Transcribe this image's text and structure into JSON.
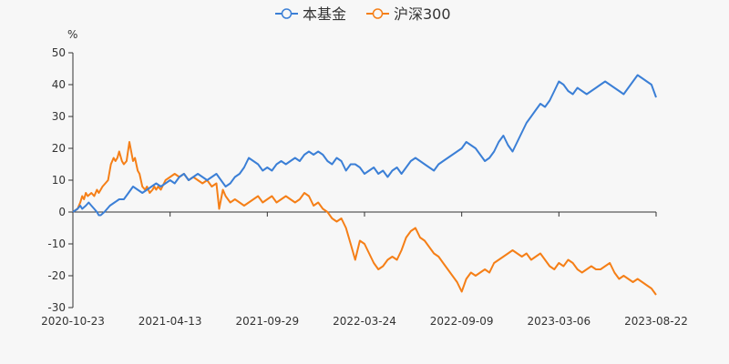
{
  "chart_data": {
    "type": "line",
    "y_unit": "%",
    "ylim": [
      -30,
      50
    ],
    "yticks": [
      50,
      40,
      30,
      20,
      10,
      0,
      -10,
      -20,
      -30
    ],
    "x_tick_labels": [
      "2020-10-23",
      "2021-04-13",
      "2021-09-29",
      "2022-03-24",
      "2022-09-09",
      "2023-03-06",
      "2023-08-22"
    ],
    "legend_position": "top-center",
    "series": [
      {
        "name": "本基金",
        "color": "#3b7fd6",
        "points": [
          [
            0,
            0
          ],
          [
            0.05,
            1
          ],
          [
            0.08,
            2
          ],
          [
            0.1,
            1
          ],
          [
            0.14,
            2
          ],
          [
            0.17,
            3
          ],
          [
            0.2,
            2
          ],
          [
            0.23,
            1
          ],
          [
            0.26,
            0
          ],
          [
            0.28,
            -1
          ],
          [
            0.3,
            -1
          ],
          [
            0.34,
            0
          ],
          [
            0.37,
            1
          ],
          [
            0.4,
            2
          ],
          [
            0.45,
            3
          ],
          [
            0.5,
            4
          ],
          [
            0.55,
            4
          ],
          [
            0.6,
            6
          ],
          [
            0.65,
            8
          ],
          [
            0.7,
            7
          ],
          [
            0.75,
            6
          ],
          [
            0.8,
            7
          ],
          [
            0.85,
            8
          ],
          [
            0.9,
            9
          ],
          [
            0.95,
            8
          ],
          [
            1.0,
            9
          ],
          [
            1.05,
            10
          ],
          [
            1.1,
            9
          ],
          [
            1.15,
            11
          ],
          [
            1.2,
            12
          ],
          [
            1.25,
            10
          ],
          [
            1.3,
            11
          ],
          [
            1.35,
            12
          ],
          [
            1.4,
            11
          ],
          [
            1.45,
            10
          ],
          [
            1.5,
            11
          ],
          [
            1.55,
            12
          ],
          [
            1.6,
            10
          ],
          [
            1.65,
            8
          ],
          [
            1.7,
            9
          ],
          [
            1.75,
            11
          ],
          [
            1.8,
            12
          ],
          [
            1.85,
            14
          ],
          [
            1.9,
            17
          ],
          [
            1.95,
            16
          ],
          [
            2.0,
            15
          ],
          [
            2.05,
            13
          ],
          [
            2.1,
            14
          ],
          [
            2.15,
            13
          ],
          [
            2.2,
            15
          ],
          [
            2.25,
            16
          ],
          [
            2.3,
            15
          ],
          [
            2.35,
            16
          ],
          [
            2.4,
            17
          ],
          [
            2.45,
            16
          ],
          [
            2.5,
            18
          ],
          [
            2.55,
            19
          ],
          [
            2.6,
            18
          ],
          [
            2.65,
            19
          ],
          [
            2.7,
            18
          ],
          [
            2.75,
            16
          ],
          [
            2.8,
            15
          ],
          [
            2.85,
            17
          ],
          [
            2.9,
            16
          ],
          [
            2.95,
            13
          ],
          [
            3.0,
            15
          ],
          [
            3.05,
            15
          ],
          [
            3.1,
            14
          ],
          [
            3.15,
            12
          ],
          [
            3.2,
            13
          ],
          [
            3.25,
            14
          ],
          [
            3.3,
            12
          ],
          [
            3.35,
            13
          ],
          [
            3.4,
            11
          ],
          [
            3.45,
            13
          ],
          [
            3.5,
            14
          ],
          [
            3.55,
            12
          ],
          [
            3.6,
            14
          ],
          [
            3.65,
            16
          ],
          [
            3.7,
            17
          ],
          [
            3.75,
            16
          ],
          [
            3.8,
            15
          ],
          [
            3.85,
            14
          ],
          [
            3.9,
            13
          ],
          [
            3.95,
            15
          ],
          [
            4.0,
            16
          ],
          [
            4.05,
            17
          ],
          [
            4.1,
            18
          ],
          [
            4.15,
            19
          ],
          [
            4.2,
            20
          ],
          [
            4.25,
            22
          ],
          [
            4.3,
            21
          ],
          [
            4.35,
            20
          ],
          [
            4.4,
            18
          ],
          [
            4.45,
            16
          ],
          [
            4.5,
            17
          ],
          [
            4.55,
            19
          ],
          [
            4.6,
            22
          ],
          [
            4.65,
            24
          ],
          [
            4.7,
            21
          ],
          [
            4.75,
            19
          ],
          [
            4.8,
            22
          ],
          [
            4.85,
            25
          ],
          [
            4.9,
            28
          ],
          [
            4.95,
            30
          ],
          [
            5.0,
            32
          ],
          [
            5.05,
            34
          ],
          [
            5.1,
            33
          ],
          [
            5.15,
            35
          ],
          [
            5.2,
            38
          ],
          [
            5.25,
            41
          ],
          [
            5.3,
            40
          ],
          [
            5.35,
            38
          ],
          [
            5.4,
            37
          ],
          [
            5.45,
            39
          ],
          [
            5.5,
            38
          ],
          [
            5.55,
            37
          ],
          [
            5.6,
            38
          ],
          [
            5.65,
            39
          ],
          [
            5.7,
            40
          ],
          [
            5.75,
            41
          ],
          [
            5.8,
            40
          ],
          [
            5.85,
            39
          ],
          [
            5.9,
            38
          ],
          [
            5.95,
            37
          ],
          [
            6.0,
            39
          ],
          [
            6.05,
            41
          ],
          [
            6.1,
            43
          ],
          [
            6.15,
            42
          ],
          [
            6.2,
            41
          ],
          [
            6.25,
            40
          ],
          [
            6.3,
            36
          ]
        ]
      },
      {
        "name": "沪深300",
        "color": "#f57f17",
        "points": [
          [
            0,
            0
          ],
          [
            0.05,
            1
          ],
          [
            0.08,
            3
          ],
          [
            0.1,
            5
          ],
          [
            0.12,
            4
          ],
          [
            0.14,
            6
          ],
          [
            0.16,
            5
          ],
          [
            0.2,
            6
          ],
          [
            0.23,
            5
          ],
          [
            0.26,
            7
          ],
          [
            0.28,
            6
          ],
          [
            0.3,
            7
          ],
          [
            0.32,
            8
          ],
          [
            0.35,
            9
          ],
          [
            0.38,
            10
          ],
          [
            0.41,
            15
          ],
          [
            0.44,
            17
          ],
          [
            0.46,
            16
          ],
          [
            0.48,
            17
          ],
          [
            0.5,
            19
          ],
          [
            0.53,
            16
          ],
          [
            0.55,
            15
          ],
          [
            0.58,
            16
          ],
          [
            0.61,
            22
          ],
          [
            0.63,
            19
          ],
          [
            0.65,
            16
          ],
          [
            0.67,
            17
          ],
          [
            0.7,
            13
          ],
          [
            0.72,
            12
          ],
          [
            0.75,
            8
          ],
          [
            0.78,
            7
          ],
          [
            0.8,
            8
          ],
          [
            0.83,
            6
          ],
          [
            0.86,
            7
          ],
          [
            0.88,
            8
          ],
          [
            0.9,
            7
          ],
          [
            0.92,
            8
          ],
          [
            0.95,
            7
          ],
          [
            1.0,
            10
          ],
          [
            1.05,
            11
          ],
          [
            1.1,
            12
          ],
          [
            1.15,
            11
          ],
          [
            1.2,
            12
          ],
          [
            1.25,
            10
          ],
          [
            1.3,
            11
          ],
          [
            1.35,
            10
          ],
          [
            1.4,
            9
          ],
          [
            1.45,
            10
          ],
          [
            1.5,
            8
          ],
          [
            1.55,
            9
          ],
          [
            1.58,
            1
          ],
          [
            1.62,
            7
          ],
          [
            1.65,
            5
          ],
          [
            1.7,
            3
          ],
          [
            1.75,
            4
          ],
          [
            1.8,
            3
          ],
          [
            1.85,
            2
          ],
          [
            1.9,
            3
          ],
          [
            1.95,
            4
          ],
          [
            2.0,
            5
          ],
          [
            2.05,
            3
          ],
          [
            2.1,
            4
          ],
          [
            2.15,
            5
          ],
          [
            2.2,
            3
          ],
          [
            2.25,
            4
          ],
          [
            2.3,
            5
          ],
          [
            2.35,
            4
          ],
          [
            2.4,
            3
          ],
          [
            2.45,
            4
          ],
          [
            2.5,
            6
          ],
          [
            2.55,
            5
          ],
          [
            2.6,
            2
          ],
          [
            2.65,
            3
          ],
          [
            2.7,
            1
          ],
          [
            2.75,
            0
          ],
          [
            2.8,
            -2
          ],
          [
            2.85,
            -3
          ],
          [
            2.9,
            -2
          ],
          [
            2.95,
            -5
          ],
          [
            3.0,
            -10
          ],
          [
            3.05,
            -15
          ],
          [
            3.1,
            -9
          ],
          [
            3.15,
            -10
          ],
          [
            3.2,
            -13
          ],
          [
            3.25,
            -16
          ],
          [
            3.3,
            -18
          ],
          [
            3.35,
            -17
          ],
          [
            3.4,
            -15
          ],
          [
            3.45,
            -14
          ],
          [
            3.5,
            -15
          ],
          [
            3.55,
            -12
          ],
          [
            3.6,
            -8
          ],
          [
            3.65,
            -6
          ],
          [
            3.7,
            -5
          ],
          [
            3.75,
            -8
          ],
          [
            3.8,
            -9
          ],
          [
            3.85,
            -11
          ],
          [
            3.9,
            -13
          ],
          [
            3.95,
            -14
          ],
          [
            4.0,
            -16
          ],
          [
            4.05,
            -18
          ],
          [
            4.1,
            -20
          ],
          [
            4.15,
            -22
          ],
          [
            4.2,
            -25
          ],
          [
            4.25,
            -21
          ],
          [
            4.3,
            -19
          ],
          [
            4.35,
            -20
          ],
          [
            4.4,
            -19
          ],
          [
            4.45,
            -18
          ],
          [
            4.5,
            -19
          ],
          [
            4.55,
            -16
          ],
          [
            4.6,
            -15
          ],
          [
            4.65,
            -14
          ],
          [
            4.7,
            -13
          ],
          [
            4.75,
            -12
          ],
          [
            4.8,
            -13
          ],
          [
            4.85,
            -14
          ],
          [
            4.9,
            -13
          ],
          [
            4.95,
            -15
          ],
          [
            5.0,
            -14
          ],
          [
            5.05,
            -13
          ],
          [
            5.1,
            -15
          ],
          [
            5.15,
            -17
          ],
          [
            5.2,
            -18
          ],
          [
            5.25,
            -16
          ],
          [
            5.3,
            -17
          ],
          [
            5.35,
            -15
          ],
          [
            5.4,
            -16
          ],
          [
            5.45,
            -18
          ],
          [
            5.5,
            -19
          ],
          [
            5.55,
            -18
          ],
          [
            5.6,
            -17
          ],
          [
            5.65,
            -18
          ],
          [
            5.7,
            -18
          ],
          [
            5.75,
            -17
          ],
          [
            5.8,
            -16
          ],
          [
            5.85,
            -19
          ],
          [
            5.9,
            -21
          ],
          [
            5.95,
            -20
          ],
          [
            6.0,
            -21
          ],
          [
            6.05,
            -22
          ],
          [
            6.1,
            -21
          ],
          [
            6.15,
            -22
          ],
          [
            6.2,
            -23
          ],
          [
            6.25,
            -24
          ],
          [
            6.3,
            -26
          ]
        ]
      }
    ]
  }
}
